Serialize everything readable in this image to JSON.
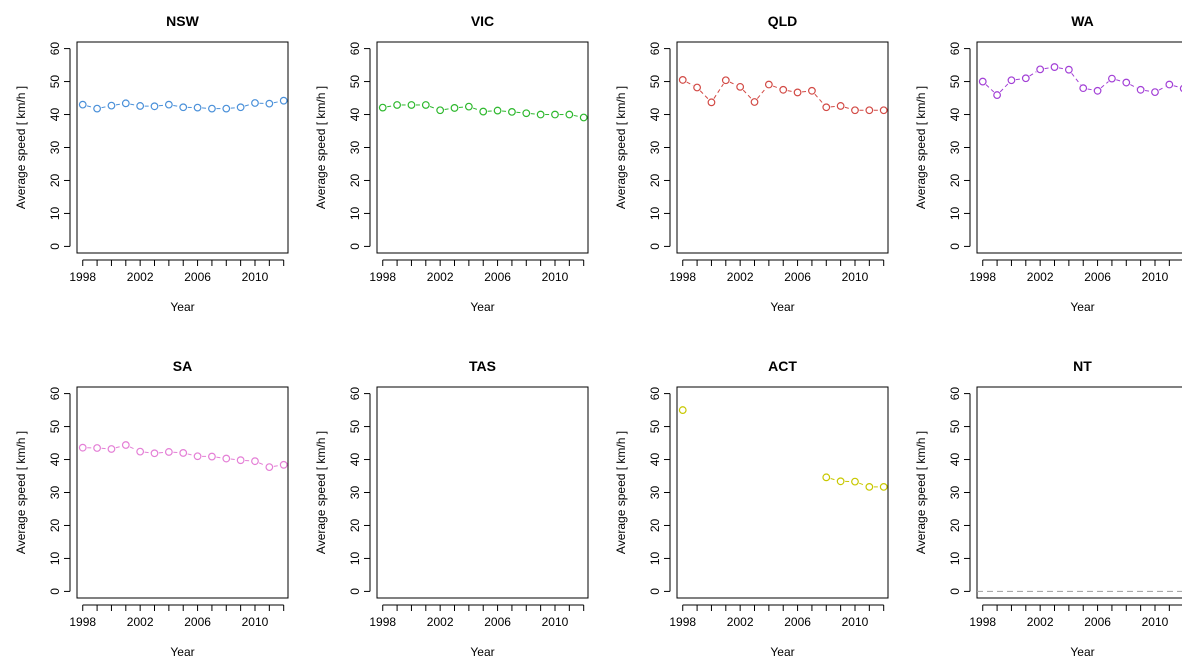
{
  "chart_data": [
    {
      "type": "line",
      "title": "NSW",
      "xlabel": "Year",
      "ylabel": "Average speed [ km/h ]",
      "xlim": [
        1997.6,
        2012.3
      ],
      "ylim": [
        -2,
        62
      ],
      "xticks": [
        "1998",
        "2002",
        "2006",
        "2010"
      ],
      "yticks": [
        "0",
        "10",
        "20",
        "30",
        "40",
        "50",
        "60"
      ],
      "color": "#4a90d9",
      "x": [
        1998,
        1999,
        2000,
        2001,
        2002,
        2003,
        2004,
        2005,
        2006,
        2007,
        2008,
        2009,
        2010,
        2011,
        2012
      ],
      "values": [
        43.0,
        41.8,
        42.7,
        43.4,
        42.6,
        42.5,
        43.0,
        42.2,
        42.1,
        41.8,
        41.8,
        42.2,
        43.5,
        43.3,
        44.2
      ]
    },
    {
      "type": "line",
      "title": "VIC",
      "xlabel": "Year",
      "ylabel": "Average speed [ km/h ]",
      "xlim": [
        1997.6,
        2012.3
      ],
      "ylim": [
        -2,
        62
      ],
      "xticks": [
        "1998",
        "2002",
        "2006",
        "2010"
      ],
      "yticks": [
        "0",
        "10",
        "20",
        "30",
        "40",
        "50",
        "60"
      ],
      "color": "#2db82d",
      "x": [
        1998,
        1999,
        2000,
        2001,
        2002,
        2003,
        2004,
        2005,
        2006,
        2007,
        2008,
        2009,
        2010,
        2011,
        2012
      ],
      "values": [
        42.1,
        42.9,
        42.9,
        42.9,
        41.3,
        42.0,
        42.4,
        40.9,
        41.2,
        40.8,
        40.4,
        40.0,
        40.0,
        40.0,
        39.1
      ]
    },
    {
      "type": "line",
      "title": "QLD",
      "xlabel": "Year",
      "ylabel": "Average speed [ km/h ]",
      "xlim": [
        1997.6,
        2012.3
      ],
      "ylim": [
        -2,
        62
      ],
      "xticks": [
        "1998",
        "2002",
        "2006",
        "2010"
      ],
      "yticks": [
        "0",
        "10",
        "20",
        "30",
        "40",
        "50",
        "60"
      ],
      "color": "#d24a45",
      "x": [
        1998,
        1999,
        2000,
        2001,
        2002,
        2003,
        2004,
        2005,
        2006,
        2007,
        2008,
        2009,
        2010,
        2011,
        2012
      ],
      "values": [
        50.5,
        48.2,
        43.7,
        50.4,
        48.4,
        43.8,
        49.1,
        47.5,
        46.7,
        47.2,
        42.2,
        42.6,
        41.3,
        41.3,
        41.3
      ]
    },
    {
      "type": "line",
      "title": "WA",
      "xlabel": "Year",
      "ylabel": "Average speed [ km/h ]",
      "xlim": [
        1997.6,
        2012.3
      ],
      "ylim": [
        -2,
        62
      ],
      "xticks": [
        "1998",
        "2002",
        "2006",
        "2010"
      ],
      "yticks": [
        "0",
        "10",
        "20",
        "30",
        "40",
        "50",
        "60"
      ],
      "color": "#a23fd6",
      "x": [
        1998,
        1999,
        2000,
        2001,
        2002,
        2003,
        2004,
        2005,
        2006,
        2007,
        2008,
        2009,
        2010,
        2011,
        2012
      ],
      "values": [
        50.0,
        45.9,
        50.4,
        51.0,
        53.7,
        54.4,
        53.6,
        48.0,
        47.2,
        50.9,
        49.7,
        47.5,
        46.8,
        49.1,
        47.9
      ]
    },
    {
      "type": "line",
      "title": "SA",
      "xlabel": "Year",
      "ylabel": "Average speed [ km/h ]",
      "xlim": [
        1997.6,
        2012.3
      ],
      "ylim": [
        -2,
        62
      ],
      "xticks": [
        "1998",
        "2002",
        "2006",
        "2010"
      ],
      "yticks": [
        "0",
        "10",
        "20",
        "30",
        "40",
        "50",
        "60"
      ],
      "color": "#e47fd6",
      "x": [
        1998,
        1999,
        2000,
        2001,
        2002,
        2003,
        2004,
        2005,
        2006,
        2007,
        2008,
        2009,
        2010,
        2011,
        2012
      ],
      "values": [
        43.6,
        43.5,
        43.2,
        44.4,
        42.4,
        41.9,
        42.3,
        42.0,
        41.0,
        40.9,
        40.3,
        39.8,
        39.5,
        37.7,
        38.4
      ]
    },
    {
      "type": "line",
      "title": "TAS",
      "xlabel": "Year",
      "ylabel": "Average speed [ km/h ]",
      "xlim": [
        1997.6,
        2012.3
      ],
      "ylim": [
        -2,
        62
      ],
      "xticks": [
        "1998",
        "2002",
        "2006",
        "2010"
      ],
      "yticks": [
        "0",
        "10",
        "20",
        "30",
        "40",
        "50",
        "60"
      ],
      "color": "#666666",
      "x": [],
      "values": []
    },
    {
      "type": "line",
      "title": "ACT",
      "xlabel": "Year",
      "ylabel": "Average speed [ km/h ]",
      "xlim": [
        1997.6,
        2012.3
      ],
      "ylim": [
        -2,
        62
      ],
      "xticks": [
        "1998",
        "2002",
        "2006",
        "2010"
      ],
      "yticks": [
        "0",
        "10",
        "20",
        "30",
        "40",
        "50",
        "60"
      ],
      "color": "#c8c800",
      "x": [
        1998,
        2008,
        2009,
        2010,
        2011,
        2012
      ],
      "values": [
        55.0,
        34.6,
        33.4,
        33.3,
        31.7,
        31.7
      ]
    },
    {
      "type": "line",
      "title": "NT",
      "xlabel": "Year",
      "ylabel": "Average speed [ km/h ]",
      "xlim": [
        1997.6,
        2012.3
      ],
      "ylim": [
        -2,
        62
      ],
      "xticks": [
        "1998",
        "2002",
        "2006",
        "2010"
      ],
      "yticks": [
        "0",
        "10",
        "20",
        "30",
        "40",
        "50",
        "60"
      ],
      "color": "#9e9e9e",
      "x": [],
      "values": [],
      "reference_line_y": 0
    }
  ]
}
